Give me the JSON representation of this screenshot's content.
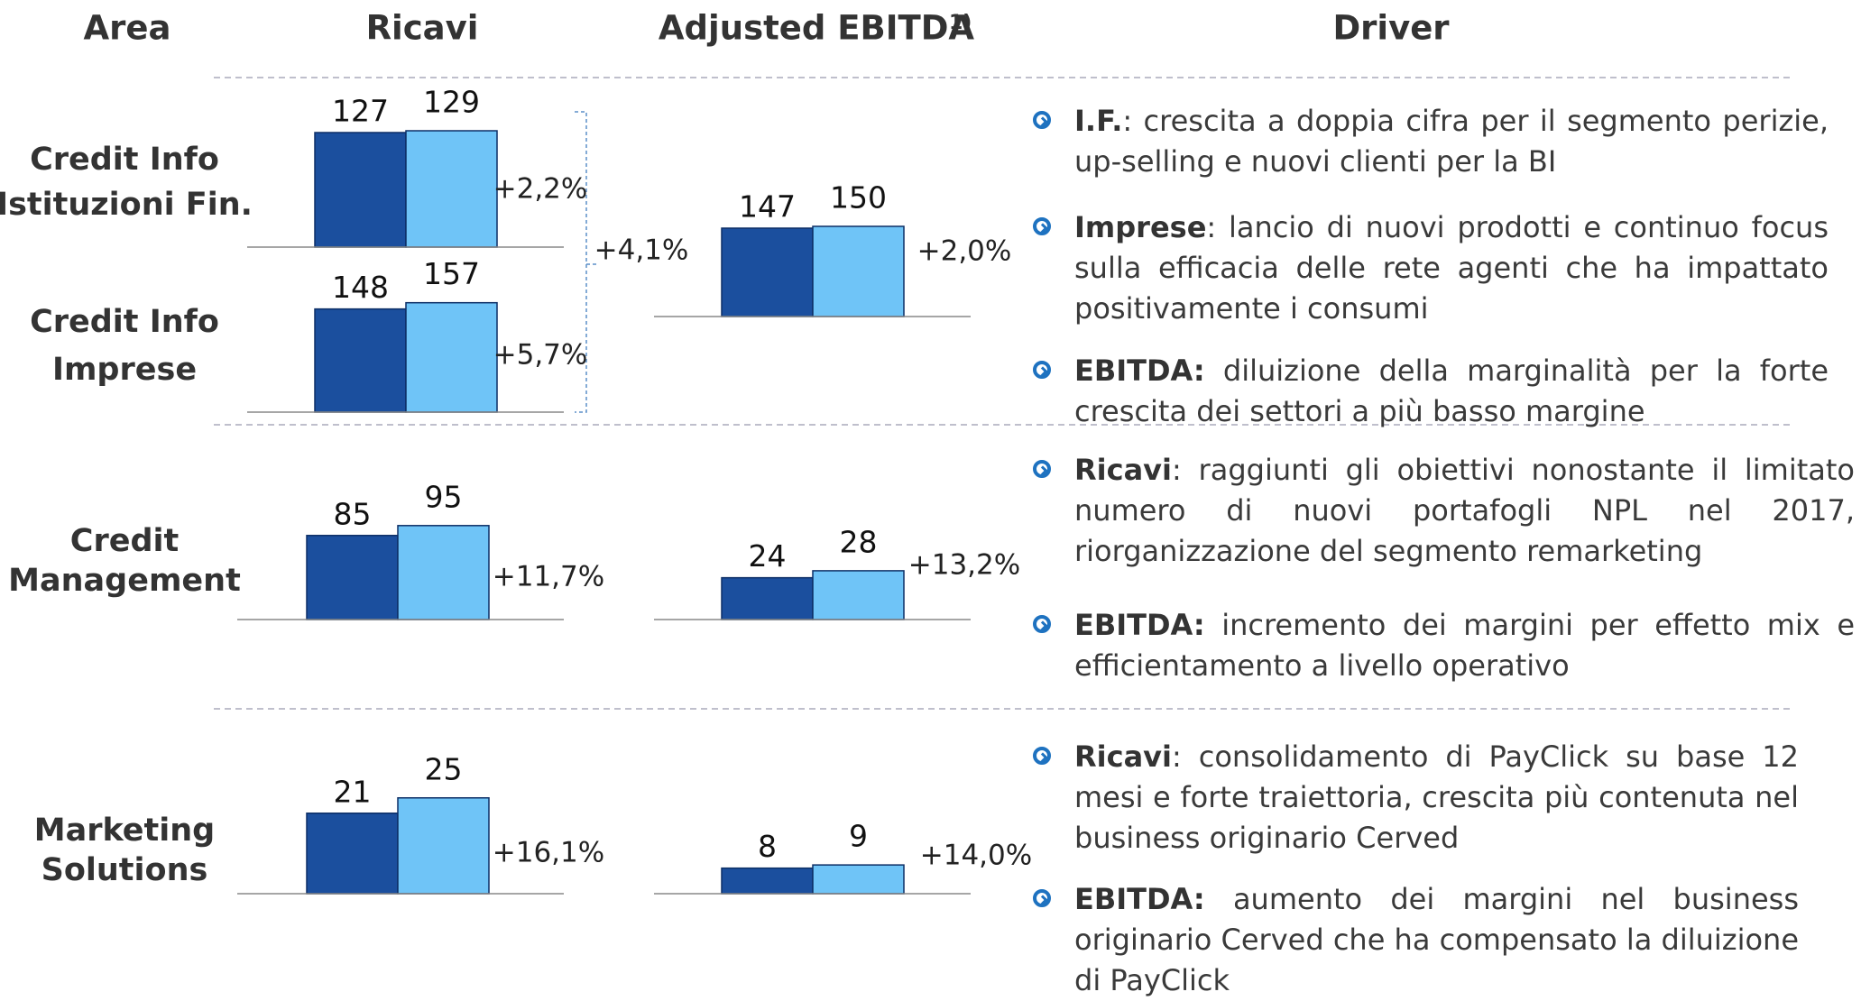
{
  "headers": {
    "area": "Area",
    "ricavi": "Ricavi",
    "ebitda": "Adjusted EBITDA",
    "ebitda_note": "1)",
    "driver": "Driver"
  },
  "rows": [
    {
      "area": [
        "Credit Info",
        "Istituzioni Fin."
      ]
    },
    {
      "area": [
        "Credit Info",
        "Imprese"
      ]
    },
    {
      "area": [
        "Credit",
        "Management"
      ]
    },
    {
      "area": [
        "Marketing",
        "Solutions"
      ]
    }
  ],
  "combined_annotation": "+4,1%",
  "drivers": [
    [
      {
        "lead": "I.F.",
        "text": ": crescita a doppia cifra per il segmento perizie, up-selling e nuovi clienti per la BI"
      },
      {
        "lead": "Imprese",
        "text": ": lancio di nuovi prodotti e continuo focus sulla efficacia delle rete agenti che ha impattato positivamente i consumi"
      },
      {
        "lead": "EBITDA:",
        "text": " diluizione della marginalità per la forte crescita dei settori a più basso margine"
      }
    ],
    [
      {
        "lead": "Ricavi",
        "text": ": raggiunti gli obiettivi nonostante il limitato numero di nuovi portafogli NPL nel 2017, riorganizzazione del segmento remarketing"
      },
      {
        "lead": "EBITDA:",
        "text": " incremento dei margini per effetto mix e efficientamento a livello operativo"
      }
    ],
    [
      {
        "lead": "Ricavi",
        "text": ": consolidamento di PayClick su base 12 mesi e forte traiettoria, crescita più contenuta nel business originario Cerved"
      },
      {
        "lead": "EBITDA:",
        "text": " aumento dei margini nel business originario Cerved che ha compensato la diluizione di PayClick"
      }
    ]
  ],
  "chart_data": [
    {
      "type": "bar",
      "categories": [
        null,
        null
      ],
      "values": [
        127,
        129
      ],
      "colors": [
        "#1b4f9e",
        "#6fc4f7"
      ],
      "ylim": [
        0,
        170
      ],
      "annotation": "+2,2%"
    },
    {
      "type": "bar",
      "categories": [
        null,
        null
      ],
      "values": [
        148,
        157
      ],
      "colors": [
        "#1b4f9e",
        "#6fc4f7"
      ],
      "ylim": [
        0,
        220
      ],
      "annotation": "+5,7%"
    },
    {
      "type": "bar",
      "categories": [
        null,
        null
      ],
      "values": [
        147,
        150
      ],
      "colors": [
        "#1b4f9e",
        "#6fc4f7"
      ],
      "ylim": [
        0,
        255
      ],
      "annotation": "+2,0%"
    },
    {
      "type": "bar",
      "categories": [
        null,
        null
      ],
      "values": [
        85,
        95
      ],
      "colors": [
        "#1b4f9e",
        "#6fc4f7"
      ],
      "ylim": [
        0,
        155
      ],
      "annotation": "+11,7%"
    },
    {
      "type": "bar",
      "categories": [
        null,
        null
      ],
      "values": [
        24,
        28
      ],
      "colors": [
        "#1b4f9e",
        "#6fc4f7"
      ],
      "ylim": [
        0,
        88
      ],
      "annotation": "+13,2%"
    },
    {
      "type": "bar",
      "categories": [
        null,
        null
      ],
      "values": [
        21,
        25
      ],
      "colors": [
        "#1b4f9e",
        "#6fc4f7"
      ],
      "ylim": [
        0,
        40
      ],
      "annotation": "+16,1%"
    },
    {
      "type": "bar",
      "categories": [
        null,
        null
      ],
      "values": [
        8,
        9
      ],
      "colors": [
        "#1b4f9e",
        "#6fc4f7"
      ],
      "ylim": [
        0,
        48
      ],
      "annotation": "+14,0%"
    }
  ]
}
